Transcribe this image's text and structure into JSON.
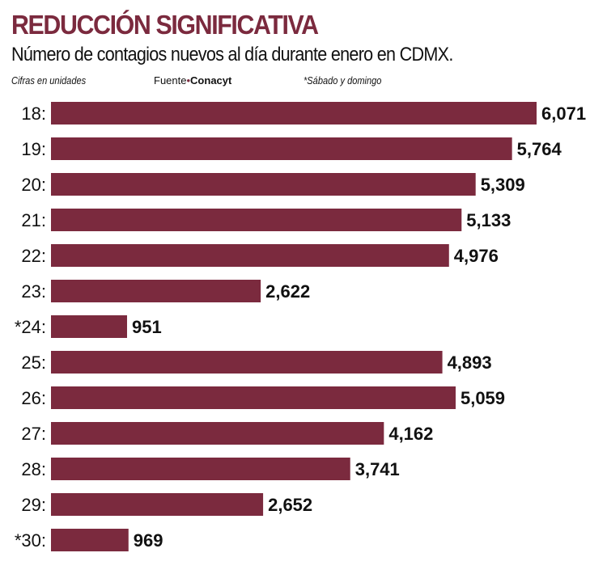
{
  "header": {
    "title": "REDUCCIÓN SIGNIFICATIVA",
    "subtitle": "Número de contagios nuevos al día durante enero en CDMX.",
    "units": "Cifras en unidades",
    "source_label": "Fuente",
    "source_name": "Conacyt",
    "footnote": "*Sábado y domingo"
  },
  "chart_data": {
    "type": "bar",
    "orientation": "horizontal",
    "title": "REDUCCIÓN SIGNIFICATIVA",
    "subtitle": "Número de contagios nuevos al día durante enero en CDMX.",
    "categories": [
      "18:",
      "19:",
      "20:",
      "21:",
      "22:",
      "23:",
      "*24:",
      "25:",
      "26:",
      "27:",
      "28:",
      "29:",
      "*30:"
    ],
    "values": [
      6071,
      5764,
      5309,
      5133,
      4976,
      2622,
      951,
      4893,
      5059,
      4162,
      3741,
      2652,
      969
    ],
    "value_labels": [
      "6,071",
      "5,764",
      "5,309",
      "5,133",
      "4,976",
      "2,622",
      "951",
      "4,893",
      "5,059",
      "4,162",
      "3,741",
      "2,652",
      "969"
    ],
    "xlim": [
      0,
      6071
    ],
    "grid": false,
    "color": "#7b2a3e"
  }
}
